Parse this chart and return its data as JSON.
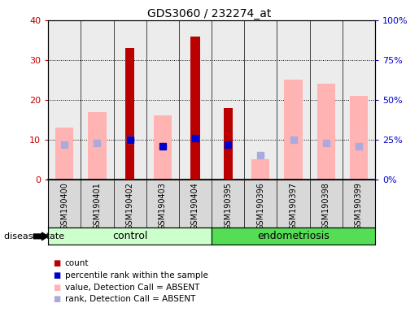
{
  "title": "GDS3060 / 232274_at",
  "samples": [
    "GSM190400",
    "GSM190401",
    "GSM190402",
    "GSM190403",
    "GSM190404",
    "GSM190395",
    "GSM190396",
    "GSM190397",
    "GSM190398",
    "GSM190399"
  ],
  "count": [
    null,
    null,
    33,
    null,
    36,
    18,
    null,
    null,
    null,
    null
  ],
  "percentile_rank": [
    null,
    null,
    25,
    21,
    26,
    22,
    null,
    null,
    null,
    null
  ],
  "value_absent": [
    13,
    17,
    null,
    16,
    null,
    null,
    5,
    25,
    24,
    21
  ],
  "rank_absent": [
    22,
    23,
    25,
    null,
    null,
    null,
    15,
    25,
    23,
    21
  ],
  "left_ylim": [
    0,
    40
  ],
  "right_ylim": [
    0,
    100
  ],
  "left_yticks": [
    0,
    10,
    20,
    30,
    40
  ],
  "right_yticks": [
    0,
    25,
    50,
    75,
    100
  ],
  "right_yticklabels": [
    "0%",
    "25%",
    "50%",
    "75%",
    "100%"
  ],
  "count_color": "#bb0000",
  "percentile_color": "#0000cc",
  "value_absent_color": "#ffb3b3",
  "rank_absent_color": "#aaaadd",
  "axis_bg": "#ececec",
  "left_label_color": "#cc0000",
  "right_label_color": "#0000cc",
  "ctrl_color_light": "#ccffcc",
  "ctrl_color_dark": "#55dd55",
  "n_control": 5,
  "n_total": 10
}
